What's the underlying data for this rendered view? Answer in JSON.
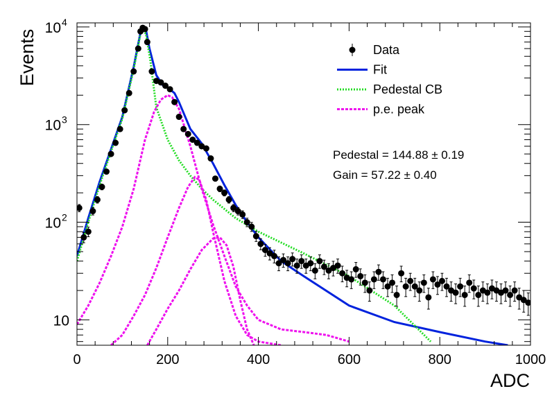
{
  "chart_data": {
    "type": "scatter",
    "xlabel": "ADC",
    "ylabel": "Events",
    "xlim": [
      0,
      1000
    ],
    "ylim": [
      5.5,
      11000
    ],
    "y_scale": "log",
    "x_ticks": [
      0,
      200,
      400,
      600,
      800,
      1000
    ],
    "y_ticks": [
      {
        "value": 10,
        "base": "10",
        "exp": ""
      },
      {
        "value": 100,
        "base": "10",
        "exp": "2"
      },
      {
        "value": 1000,
        "base": "10",
        "exp": "3"
      },
      {
        "value": 10000,
        "base": "10",
        "exp": "4"
      }
    ],
    "grid": false,
    "legend_position": "top-right",
    "legend": [
      {
        "label": "Data",
        "kind": "marker",
        "color": "#000000"
      },
      {
        "label": "Fit",
        "kind": "line",
        "color": "#0022dd"
      },
      {
        "label": "Pedestal CB",
        "kind": "dotted",
        "color": "#22dd22"
      },
      {
        "label": "p.e. peak",
        "kind": "dashed",
        "color": "#ee11ee"
      }
    ],
    "annotations": [
      "Pedestal = 144.88 ± 0.19",
      "Gain = 57.22 ± 0.40"
    ],
    "series": [
      {
        "name": "Data",
        "color": "#000000",
        "points": [
          [
            5,
            140
          ],
          [
            15,
            70
          ],
          [
            25,
            80
          ],
          [
            35,
            130
          ],
          [
            45,
            170
          ],
          [
            55,
            230
          ],
          [
            65,
            330
          ],
          [
            75,
            500
          ],
          [
            85,
            650
          ],
          [
            95,
            900
          ],
          [
            105,
            1400
          ],
          [
            115,
            2100
          ],
          [
            125,
            3500
          ],
          [
            135,
            6000
          ],
          [
            140,
            9000
          ],
          [
            145,
            9800
          ],
          [
            150,
            9500
          ],
          [
            155,
            7000
          ],
          [
            165,
            3500
          ],
          [
            175,
            2800
          ],
          [
            185,
            2700
          ],
          [
            195,
            2500
          ],
          [
            205,
            2300
          ],
          [
            215,
            1700
          ],
          [
            225,
            1200
          ],
          [
            235,
            900
          ],
          [
            245,
            800
          ],
          [
            255,
            700
          ],
          [
            265,
            650
          ],
          [
            275,
            600
          ],
          [
            285,
            570
          ],
          [
            295,
            450
          ],
          [
            305,
            280
          ],
          [
            315,
            220
          ],
          [
            325,
            200
          ],
          [
            335,
            170
          ],
          [
            345,
            140
          ],
          [
            355,
            130
          ],
          [
            365,
            120
          ],
          [
            375,
            100
          ],
          [
            385,
            90
          ],
          [
            395,
            72
          ],
          [
            405,
            60
          ],
          [
            415,
            52
          ],
          [
            425,
            48
          ],
          [
            435,
            45
          ],
          [
            445,
            38
          ],
          [
            455,
            41
          ],
          [
            465,
            38
          ],
          [
            475,
            42
          ],
          [
            485,
            36
          ],
          [
            495,
            40
          ],
          [
            505,
            36
          ],
          [
            515,
            38
          ],
          [
            525,
            32
          ],
          [
            535,
            40
          ],
          [
            545,
            35
          ],
          [
            555,
            32
          ],
          [
            565,
            34
          ],
          [
            575,
            36
          ],
          [
            585,
            30
          ],
          [
            595,
            27
          ],
          [
            605,
            26
          ],
          [
            615,
            33
          ],
          [
            625,
            28
          ],
          [
            635,
            24
          ],
          [
            645,
            20
          ],
          [
            655,
            26
          ],
          [
            665,
            31
          ],
          [
            675,
            26
          ],
          [
            685,
            22
          ],
          [
            695,
            24
          ],
          [
            705,
            18
          ],
          [
            715,
            30
          ],
          [
            725,
            22
          ],
          [
            735,
            25
          ],
          [
            745,
            22
          ],
          [
            755,
            20
          ],
          [
            765,
            24
          ],
          [
            775,
            17
          ],
          [
            785,
            26
          ],
          [
            795,
            23
          ],
          [
            805,
            25
          ],
          [
            815,
            22
          ],
          [
            825,
            20
          ],
          [
            835,
            19
          ],
          [
            845,
            22
          ],
          [
            855,
            18
          ],
          [
            865,
            24
          ],
          [
            875,
            21
          ],
          [
            885,
            18
          ],
          [
            895,
            20
          ],
          [
            905,
            19
          ],
          [
            915,
            21
          ],
          [
            925,
            20
          ],
          [
            935,
            19
          ],
          [
            945,
            20
          ],
          [
            955,
            18
          ],
          [
            965,
            20
          ],
          [
            975,
            17
          ],
          [
            985,
            16
          ],
          [
            995,
            15
          ]
        ]
      },
      {
        "name": "Fit",
        "color": "#0022dd",
        "points": [
          [
            0,
            45
          ],
          [
            25,
            110
          ],
          [
            50,
            260
          ],
          [
            75,
            560
          ],
          [
            100,
            1200
          ],
          [
            125,
            3900
          ],
          [
            140,
            8800
          ],
          [
            145,
            9800
          ],
          [
            152,
            9400
          ],
          [
            160,
            6000
          ],
          [
            175,
            3200
          ],
          [
            190,
            2500
          ],
          [
            200,
            2400
          ],
          [
            215,
            2100
          ],
          [
            225,
            1700
          ],
          [
            250,
            900
          ],
          [
            275,
            640
          ],
          [
            300,
            400
          ],
          [
            325,
            240
          ],
          [
            350,
            150
          ],
          [
            375,
            100
          ],
          [
            400,
            70
          ],
          [
            450,
            40
          ],
          [
            500,
            28
          ],
          [
            600,
            14
          ],
          [
            700,
            9.5
          ],
          [
            800,
            7.5
          ],
          [
            900,
            6
          ],
          [
            950,
            5.5
          ]
        ]
      },
      {
        "name": "Pedestal CB",
        "color": "#22dd22",
        "points": [
          [
            0,
            40
          ],
          [
            25,
            100
          ],
          [
            50,
            240
          ],
          [
            75,
            530
          ],
          [
            100,
            1150
          ],
          [
            125,
            3700
          ],
          [
            140,
            8500
          ],
          [
            145,
            9300
          ],
          [
            152,
            8500
          ],
          [
            162,
            4500
          ],
          [
            175,
            1500
          ],
          [
            200,
            700
          ],
          [
            225,
            430
          ],
          [
            250,
            300
          ],
          [
            275,
            220
          ],
          [
            300,
            170
          ],
          [
            350,
            110
          ],
          [
            400,
            80
          ],
          [
            500,
            48
          ],
          [
            600,
            28
          ],
          [
            700,
            14
          ],
          [
            780,
            6
          ]
        ]
      },
      {
        "name": "p.e. peak (1st)",
        "color": "#ee11ee",
        "points": [
          [
            0,
            9
          ],
          [
            25,
            14
          ],
          [
            50,
            24
          ],
          [
            75,
            45
          ],
          [
            100,
            90
          ],
          [
            125,
            220
          ],
          [
            150,
            700
          ],
          [
            170,
            1350
          ],
          [
            185,
            1800
          ],
          [
            200,
            2000
          ],
          [
            210,
            1900
          ],
          [
            225,
            1450
          ],
          [
            250,
            600
          ],
          [
            275,
            220
          ],
          [
            300,
            95
          ],
          [
            325,
            45
          ],
          [
            350,
            22
          ],
          [
            375,
            14
          ],
          [
            400,
            10
          ],
          [
            450,
            8
          ],
          [
            500,
            7.5
          ],
          [
            550,
            7
          ],
          [
            600,
            6
          ]
        ]
      },
      {
        "name": "p.e. peak (2nd)",
        "color": "#ee11ee",
        "points": [
          [
            75,
            5.5
          ],
          [
            100,
            7
          ],
          [
            125,
            11
          ],
          [
            150,
            18
          ],
          [
            175,
            34
          ],
          [
            200,
            70
          ],
          [
            225,
            140
          ],
          [
            245,
            230
          ],
          [
            260,
            290
          ],
          [
            270,
            270
          ],
          [
            285,
            170
          ],
          [
            300,
            80
          ],
          [
            325,
            25
          ],
          [
            350,
            11
          ],
          [
            375,
            7
          ],
          [
            400,
            6
          ],
          [
            450,
            5.5
          ]
        ]
      },
      {
        "name": "p.e. peak (3rd)",
        "color": "#ee11ee",
        "points": [
          [
            155,
            5.5
          ],
          [
            175,
            8
          ],
          [
            200,
            13
          ],
          [
            225,
            20
          ],
          [
            250,
            33
          ],
          [
            275,
            52
          ],
          [
            300,
            68
          ],
          [
            315,
            70
          ],
          [
            330,
            58
          ],
          [
            345,
            35
          ],
          [
            360,
            16
          ],
          [
            375,
            8
          ],
          [
            390,
            5.5
          ]
        ]
      }
    ]
  }
}
